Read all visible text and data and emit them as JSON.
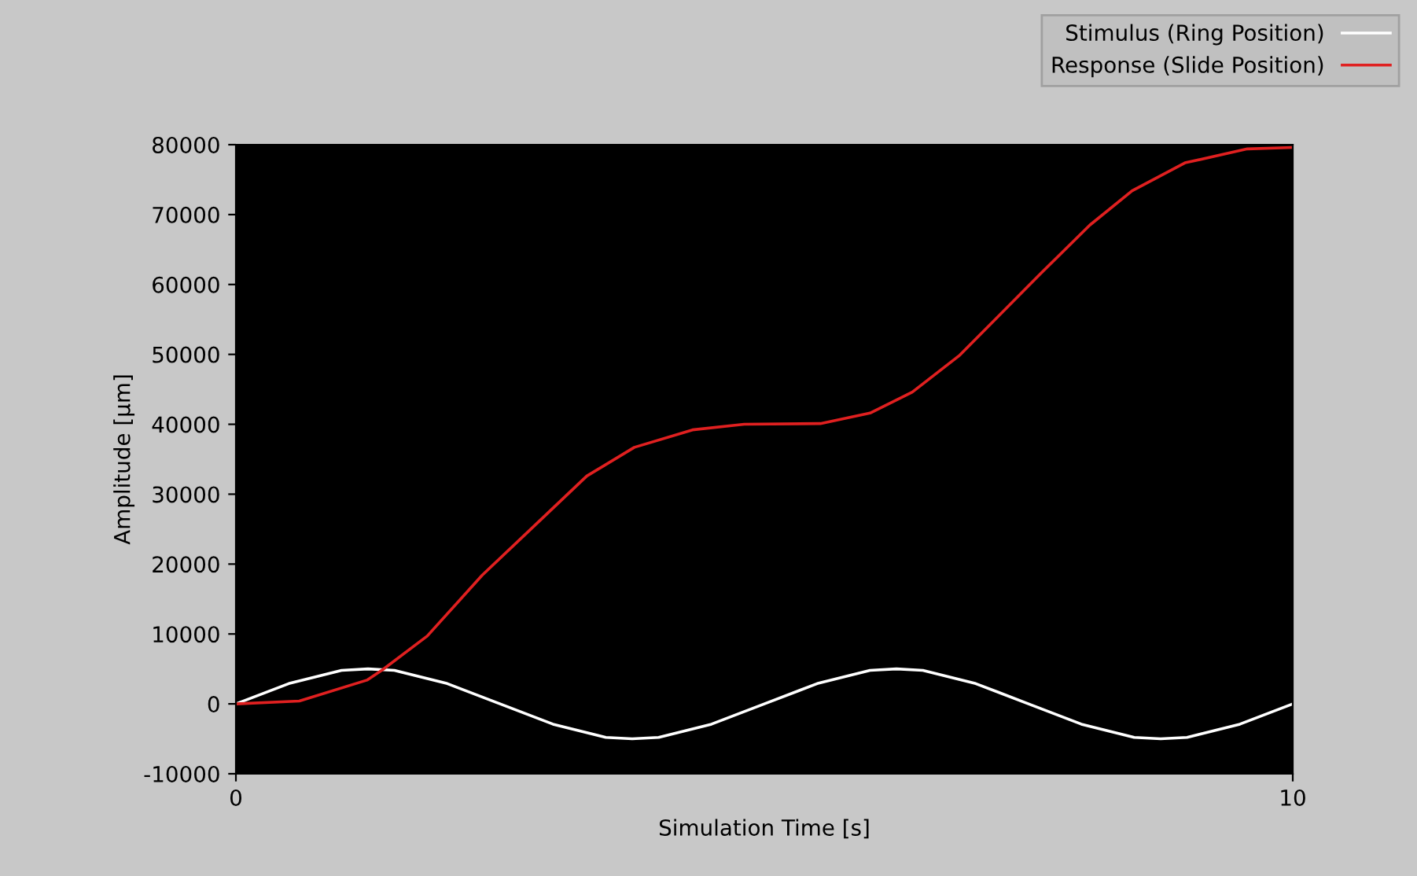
{
  "chart_data": {
    "type": "line",
    "xlabel": "Simulation Time [s]",
    "ylabel": "Amplitude [µm]",
    "xlim": [
      0,
      10
    ],
    "ylim": [
      -10000,
      80000
    ],
    "xticks": [
      0,
      10
    ],
    "yticks": [
      -10000,
      0,
      10000,
      20000,
      30000,
      40000,
      50000,
      60000,
      70000,
      80000
    ],
    "grid": false,
    "legend": "top right",
    "series": [
      {
        "name": "Stimulus (Ring Position)",
        "color": "#ffffff",
        "x": [
          0,
          0.5,
          1,
          1.25,
          1.5,
          2,
          2.5,
          3,
          3.5,
          3.75,
          4,
          4.5,
          5,
          5.5,
          6,
          6.25,
          6.5,
          7,
          7.5,
          8,
          8.5,
          8.75,
          9,
          9.5,
          10
        ],
        "values": [
          0,
          2900,
          4800,
          5000,
          4800,
          2900,
          0,
          -2900,
          -4800,
          -5000,
          -4800,
          -2900,
          0,
          2900,
          4800,
          5000,
          4800,
          2900,
          0,
          -2900,
          -4800,
          -5000,
          -4800,
          -2900,
          0
        ]
      },
      {
        "name": "Response (Slide Position)",
        "color": "#e02020",
        "x": [
          0,
          0.6,
          1.24,
          1.39,
          1.81,
          2.33,
          2.93,
          3.32,
          3.77,
          4.32,
          4.81,
          5.53,
          6.0,
          6.4,
          6.85,
          7.61,
          8.08,
          8.48,
          8.98,
          9.57,
          10
        ],
        "values": [
          0,
          400,
          3400,
          4900,
          9700,
          18400,
          27000,
          32600,
          36700,
          39200,
          40000,
          40100,
          41600,
          44600,
          49900,
          61500,
          68500,
          73400,
          77400,
          79400,
          79600
        ]
      }
    ]
  }
}
